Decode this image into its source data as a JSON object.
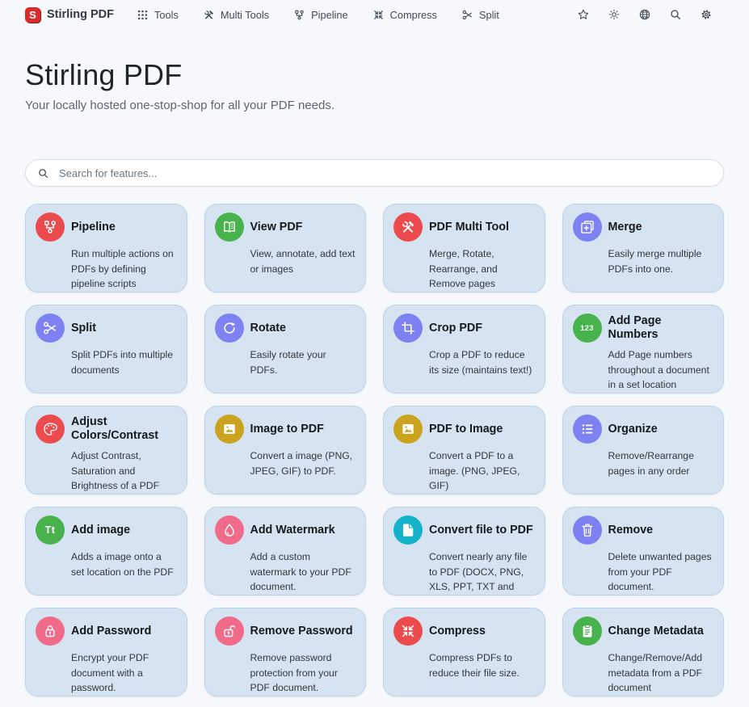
{
  "navbar": {
    "logo_letter": "S",
    "brand": "Stirling PDF",
    "items": [
      {
        "label": "Tools",
        "icon": "grid-icon"
      },
      {
        "label": "Multi Tools",
        "icon": "tools-icon"
      },
      {
        "label": "Pipeline",
        "icon": "pipeline-icon"
      },
      {
        "label": "Compress",
        "icon": "compress-icon"
      },
      {
        "label": "Split",
        "icon": "scissors-icon"
      }
    ],
    "action_icons": [
      "star-icon",
      "brightness-icon",
      "globe-icon",
      "search-icon",
      "gear-icon"
    ]
  },
  "hero": {
    "title": "Stirling PDF",
    "subtitle": "Your locally hosted one-stop-shop for all your PDF needs."
  },
  "search": {
    "placeholder": "Search for features..."
  },
  "palette": {
    "red": "#ec4b4d",
    "green": "#48b24c",
    "indigo": "#7d81f2",
    "gold": "#cba41f",
    "pink": "#f06b89",
    "cyan": "#15b2ca"
  },
  "surface": {
    "page_bg": "#f6f8fb",
    "card_bg": "#d6e4f2",
    "card_border": "#bad3e8",
    "logo_red": "#d92b2b"
  },
  "cards": [
    {
      "title": "Pipeline",
      "description": "Run multiple actions on PDFs by defining pipeline scripts",
      "icon": "pipeline-icon",
      "color": "red"
    },
    {
      "title": "View PDF",
      "description": "View, annotate, add text or images",
      "icon": "book-icon",
      "color": "green"
    },
    {
      "title": "PDF Multi Tool",
      "description": "Merge, Rotate, Rearrange, and Remove pages",
      "icon": "tools-icon",
      "color": "red"
    },
    {
      "title": "Merge",
      "description": "Easily merge multiple PDFs into one.",
      "icon": "merge-icon",
      "color": "indigo"
    },
    {
      "title": "Split",
      "description": "Split PDFs into multiple documents",
      "icon": "scissors-icon",
      "color": "indigo"
    },
    {
      "title": "Rotate",
      "description": "Easily rotate your PDFs.",
      "icon": "rotate-icon",
      "color": "indigo"
    },
    {
      "title": "Crop PDF",
      "description": "Crop a PDF to reduce its size (maintains text!)",
      "icon": "crop-icon",
      "color": "indigo"
    },
    {
      "title": "Add Page Numbers",
      "description": "Add Page numbers throughout a document in a set location",
      "icon": "numbers-123-icon",
      "color": "green"
    },
    {
      "title": "Adjust Colors/Contrast",
      "description": "Adjust Contrast, Saturation and Brightness of a PDF",
      "icon": "palette-icon",
      "color": "red"
    },
    {
      "title": "Image to PDF",
      "description": "Convert a image (PNG, JPEG, GIF) to PDF.",
      "icon": "image-icon",
      "color": "gold"
    },
    {
      "title": "PDF to Image",
      "description": "Convert a PDF to a image. (PNG, JPEG, GIF)",
      "icon": "image-icon",
      "color": "gold"
    },
    {
      "title": "Organize",
      "description": "Remove/Rearrange pages in any order",
      "icon": "list-icon",
      "color": "indigo"
    },
    {
      "title": "Add image",
      "description": "Adds a image onto a set location on the PDF",
      "icon": "text-Tt-icon",
      "color": "green"
    },
    {
      "title": "Add Watermark",
      "description": "Add a custom watermark to your PDF document.",
      "icon": "droplet-icon",
      "color": "pink"
    },
    {
      "title": "Convert file to PDF",
      "description": "Convert nearly any file to PDF (DOCX, PNG, XLS, PPT, TXT and more)",
      "icon": "file-icon",
      "color": "cyan"
    },
    {
      "title": "Remove",
      "description": "Delete unwanted pages from your PDF document.",
      "icon": "trash-icon",
      "color": "indigo"
    },
    {
      "title": "Add Password",
      "description": "Encrypt your PDF document with a password.",
      "icon": "lock-icon",
      "color": "pink"
    },
    {
      "title": "Remove Password",
      "description": "Remove password protection from your PDF document.",
      "icon": "unlock-icon",
      "color": "pink"
    },
    {
      "title": "Compress",
      "description": "Compress PDFs to reduce their file size.",
      "icon": "compress-icon",
      "color": "red"
    },
    {
      "title": "Change Metadata",
      "description": "Change/Remove/Add metadata from a PDF document",
      "icon": "clipboard-icon",
      "color": "green"
    }
  ]
}
